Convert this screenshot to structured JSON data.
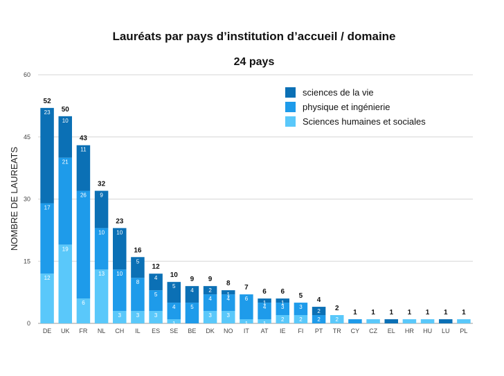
{
  "chart_data": {
    "type": "bar",
    "stacked": true,
    "title": "Lauréats par pays d’institution d’accueil / domaine",
    "subtitle": "24 pays",
    "xlabel": "",
    "ylabel": "NOMBRE DE LAUREATS",
    "ylim": [
      0,
      60
    ],
    "yticks": [
      0,
      15,
      30,
      45,
      60
    ],
    "grid": true,
    "legend_position": "top-right",
    "categories": [
      "DE",
      "UK",
      "FR",
      "NL",
      "CH",
      "IL",
      "ES",
      "SE",
      "BE",
      "DK",
      "NO",
      "IT",
      "AT",
      "IE",
      "FI",
      "PT",
      "TR",
      "CY",
      "CZ",
      "EL",
      "HR",
      "HU",
      "LU",
      "PL"
    ],
    "totals": [
      52,
      50,
      43,
      32,
      23,
      16,
      12,
      10,
      9,
      9,
      8,
      7,
      6,
      6,
      5,
      4,
      2,
      1,
      1,
      1,
      1,
      1,
      1,
      1
    ],
    "series": [
      {
        "name": "Sciences humaines et sociales",
        "color": "#5ac8fa",
        "values": [
          12,
          19,
          6,
          13,
          3,
          3,
          3,
          1,
          0,
          3,
          3,
          1,
          1,
          2,
          2,
          0,
          2,
          0,
          1,
          0,
          1,
          1,
          0,
          1
        ],
        "labels": [
          "12",
          "19",
          "6",
          "13",
          "3",
          "3",
          "3",
          "1",
          "",
          "3",
          "3",
          "1",
          "1",
          "2",
          "2",
          "",
          "2",
          "",
          "",
          "",
          "",
          "",
          "",
          ""
        ]
      },
      {
        "name": "physique et ingénierie",
        "color": "#1e9bea",
        "values": [
          17,
          21,
          26,
          10,
          10,
          8,
          5,
          4,
          5,
          4,
          4,
          6,
          4,
          3,
          3,
          2,
          0,
          1,
          0,
          0,
          0,
          0,
          0,
          0
        ],
        "labels": [
          "17",
          "21",
          "26",
          "10",
          "10",
          "8",
          "5",
          "4",
          "5",
          "4",
          "4",
          "6",
          "4",
          "3",
          "3",
          "2",
          "",
          "",
          "",
          "",
          "",
          "",
          "",
          ""
        ]
      },
      {
        "name": "sciences de la vie",
        "color": "#0b70b5",
        "values": [
          23,
          10,
          11,
          9,
          10,
          5,
          4,
          5,
          4,
          2,
          1,
          0,
          1,
          1,
          0,
          2,
          0,
          0,
          0,
          1,
          0,
          0,
          1,
          0
        ],
        "labels": [
          "23",
          "10",
          "11",
          "9",
          "10",
          "5",
          "4",
          "5",
          "4",
          "2",
          "1",
          "",
          "1",
          "1",
          "",
          "2",
          "",
          "",
          "",
          "",
          "",
          "",
          "",
          ""
        ]
      }
    ],
    "legend_order": [
      "sciences de la vie",
      "physique et ingénierie",
      "Sciences humaines et sociales"
    ]
  }
}
